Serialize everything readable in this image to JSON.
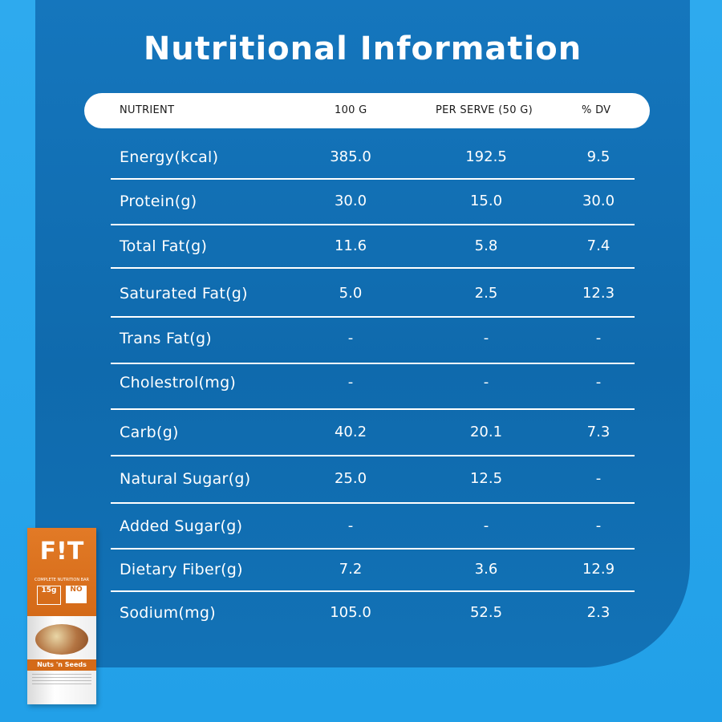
{
  "title": "Nutritional Information",
  "header": {
    "nutrient": "NUTRIENT",
    "per100": "100 G",
    "perServe": "PER SERVE (50 G)",
    "dv": "% DV"
  },
  "rows": [
    {
      "nutrient": "Energy(kcal)",
      "per100": "385.0",
      "perServe": "192.5",
      "dv": "9.5"
    },
    {
      "nutrient": "Protein(g)",
      "per100": "30.0",
      "perServe": "15.0",
      "dv": "30.0"
    },
    {
      "nutrient": "Total Fat(g)",
      "per100": "11.6",
      "perServe": "5.8",
      "dv": "7.4"
    },
    {
      "nutrient": "Saturated Fat(g)",
      "per100": "5.0",
      "perServe": "2.5",
      "dv": "12.3"
    },
    {
      "nutrient": "Trans Fat(g)",
      "per100": "-",
      "perServe": "-",
      "dv": "-"
    },
    {
      "nutrient": "Cholestrol(mg)",
      "per100": "-",
      "perServe": "-",
      "dv": "-"
    },
    {
      "nutrient": "Carb(g)",
      "per100": "40.2",
      "perServe": "20.1",
      "dv": "7.3"
    },
    {
      "nutrient": "Natural Sugar(g)",
      "per100": "25.0",
      "perServe": "12.5",
      "dv": "-"
    },
    {
      "nutrient": "Added Sugar(g)",
      "per100": "-",
      "perServe": "-",
      "dv": "-"
    },
    {
      "nutrient": "Dietary Fiber(g)",
      "per100": "7.2",
      "perServe": "3.6",
      "dv": "12.9"
    },
    {
      "nutrient": "Sodium(mg)",
      "per100": "105.0",
      "perServe": "52.5",
      "dv": "2.3"
    }
  ],
  "product": {
    "brand": "F!T",
    "tagline": "COMPLETE NUTRITION BAR",
    "badge_protein": "15g",
    "badge_sugar": "NO",
    "flavor": "Nuts 'n Seeds"
  },
  "colors": {
    "panel": "#1272b6",
    "outer": "#29a3e6",
    "pack_orange": "#d46a18"
  }
}
